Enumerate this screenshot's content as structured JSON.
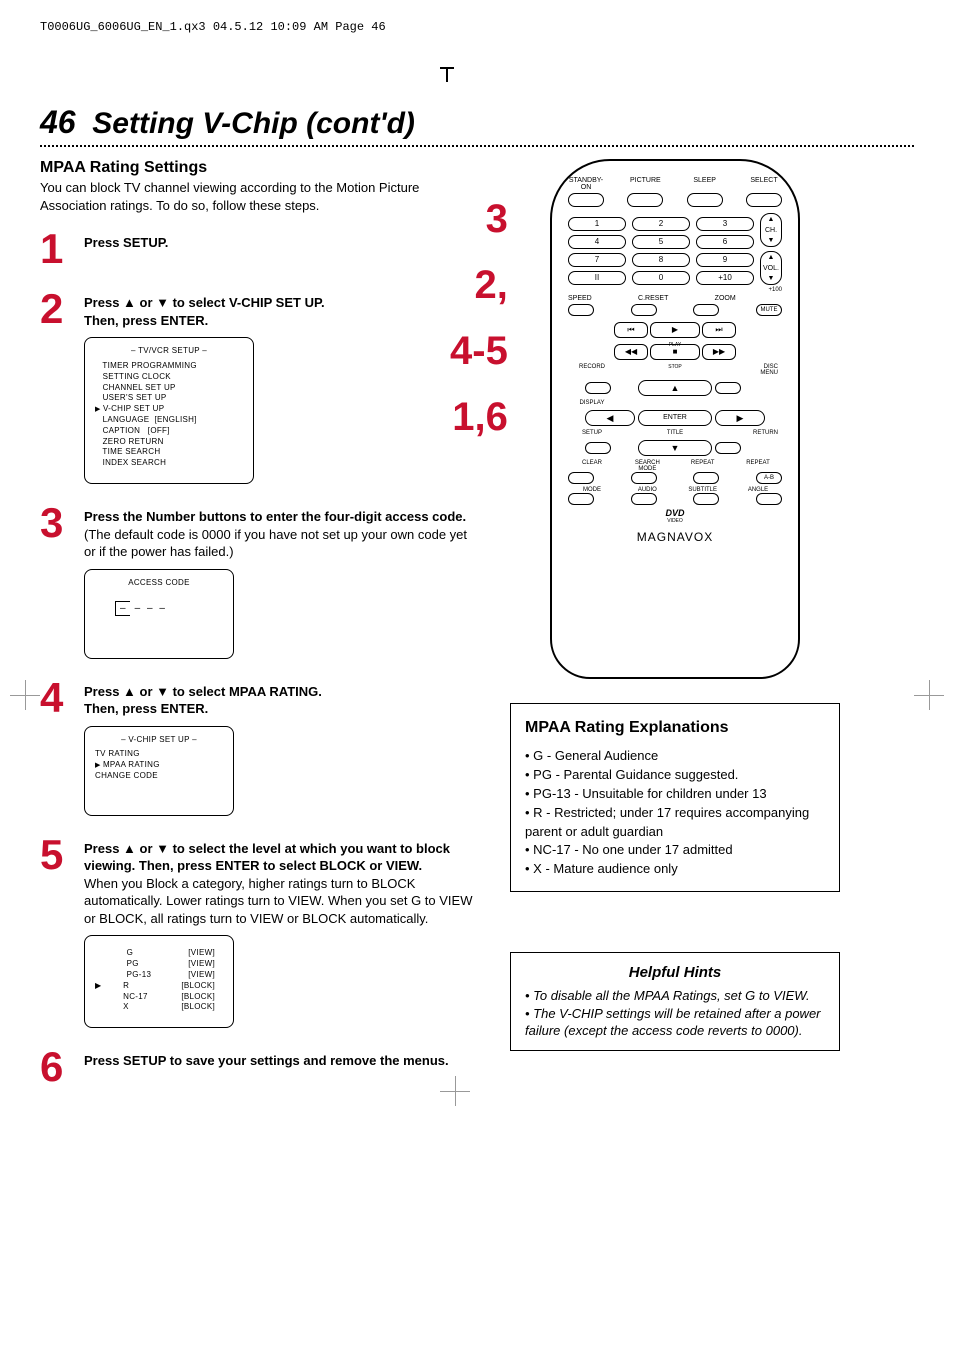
{
  "header_line": "T0006UG_6006UG_EN_1.qx3   04.5.12   10:09 AM   Page  46",
  "page_number": "46",
  "page_title_text": "Setting V-Chip (cont'd)",
  "section_heading": "MPAA Rating Settings",
  "intro": "You can block TV channel viewing according to the Motion Picture Association ratings. To do so, follow these steps.",
  "steps": {
    "s1": {
      "num": "1",
      "text": "Press SETUP."
    },
    "s2": {
      "num": "2",
      "text_a": "Press ▲ or ▼ to select V-CHIP SET UP.",
      "text_b": "Then, press ENTER."
    },
    "s3": {
      "num": "3",
      "text_a": "Press the Number buttons to enter the four-digit access code.",
      "text_b": " (The default code is 0000 if you have not set up your own code yet or if the power has failed.)"
    },
    "s4": {
      "num": "4",
      "text_a": "Press ▲ or ▼ to select MPAA RATING.",
      "text_b": "Then, press ENTER."
    },
    "s5": {
      "num": "5",
      "text_a": "Press ▲ or ▼ to select the level at which you want to block viewing. Then, press ENTER to select BLOCK or VIEW.",
      "text_b": "When you Block a category, higher ratings turn to BLOCK automatically. Lower ratings turn to VIEW. When you set G to VIEW or BLOCK, all ratings turn to VIEW or BLOCK automatically."
    },
    "s6": {
      "num": "6",
      "text": "Press SETUP to save your settings and remove the menus."
    }
  },
  "osd1": {
    "title": "– TV/VCR SETUP –",
    "lines": [
      "TIMER PROGRAMMING",
      "SETTING CLOCK",
      "CHANNEL SET UP",
      "USER'S SET UP",
      "V-CHIP SET UP",
      "LANGUAGE  [ENGLISH]",
      "CAPTION   [OFF]",
      "ZERO RETURN",
      "TIME SEARCH",
      "INDEX SEARCH"
    ],
    "pointer_index": 4
  },
  "osd2": {
    "title": "ACCESS CODE",
    "display": "– – – –"
  },
  "osd3": {
    "title": "– V-CHIP SET UP –",
    "lines": [
      "TV RATING",
      "MPAA RATING",
      "CHANGE CODE"
    ],
    "pointer_index": 1
  },
  "osd4": {
    "rows": [
      {
        "label": "G",
        "val": "[VIEW]",
        "ptr": false
      },
      {
        "label": "PG",
        "val": "[VIEW]",
        "ptr": false
      },
      {
        "label": "PG-13",
        "val": "[VIEW]",
        "ptr": false
      },
      {
        "label": "R",
        "val": "[BLOCK]",
        "ptr": true
      },
      {
        "label": "NC-17",
        "val": "[BLOCK]",
        "ptr": false
      },
      {
        "label": "X",
        "val": "[BLOCK]",
        "ptr": false
      }
    ]
  },
  "remote_labels": {
    "r1": "3",
    "r2": "2,",
    "r3": "4-5",
    "r4": "1,6"
  },
  "remote": {
    "top_row": [
      "STANDBY-ON",
      "PICTURE",
      "SLEEP",
      "SELECT"
    ],
    "numbers": [
      "1",
      "2",
      "3",
      "4",
      "5",
      "6",
      "7",
      "8",
      "9",
      "II",
      "0",
      "+10"
    ],
    "chvol_labels": [
      "CH.",
      "VOL."
    ],
    "plus100": "+100",
    "mid3": [
      "SPEED",
      "C.RESET",
      "ZOOM"
    ],
    "mute": "MUTE",
    "play": "PLAY",
    "stop": "STOP",
    "record": "RECORD",
    "disc_menu": "DISC\nMENU",
    "display": "DISPLAY",
    "enter": "ENTER",
    "setup": "SETUP",
    "title": "TITLE",
    "return": "RETURN",
    "clear": "CLEAR",
    "searchmode": "SEARCH MODE",
    "repeat": "REPEAT",
    "repeat_ab": "REPEAT",
    "ab": "A-B",
    "mode": "MODE",
    "audio": "AUDIO",
    "subtitle": "SUBTITLE",
    "angle": "ANGLE",
    "dvd_logo": "DVD",
    "video": "VIDEO",
    "brand": "MAGNAVOX"
  },
  "explain": {
    "title": "MPAA Rating Explanations",
    "items": [
      "G - General Audience",
      "PG - Parental Guidance suggested.",
      "PG-13 - Unsuitable for children under 13",
      "R - Restricted; under 17 requires accompanying parent or adult guardian",
      "NC-17 - No one under 17 admitted",
      "X - Mature audience only"
    ]
  },
  "hints": {
    "title": "Helpful Hints",
    "items": [
      "To disable all the MPAA Ratings, set G to VIEW.",
      "The V-CHIP settings will be retained after a power failure (except the access code reverts to 0000)."
    ]
  },
  "colors": {
    "accent": "#c8102e",
    "text": "#000000",
    "bg": "#ffffff"
  }
}
